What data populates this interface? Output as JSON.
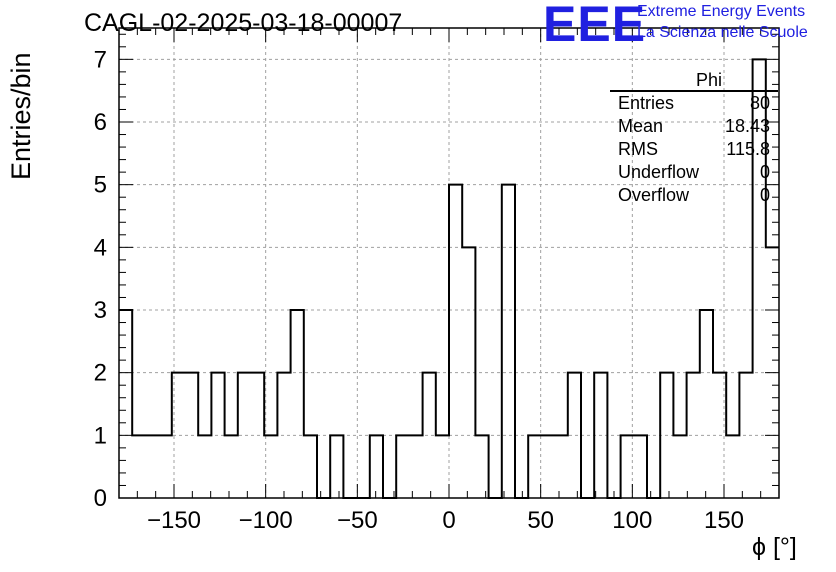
{
  "header": {
    "title": "CAGL-02-2025-03-18-00007",
    "logo_text": "EEE",
    "logo_line1": "Extreme Energy Events",
    "logo_line2": "La Scienza nelle Scuole"
  },
  "stats_box": {
    "name": "Phi",
    "rows": [
      {
        "key": "Entries",
        "value": "80"
      },
      {
        "key": "Mean",
        "value": "18.43"
      },
      {
        "key": "RMS",
        "value": "115.8"
      },
      {
        "key": "Underflow",
        "value": "0"
      },
      {
        "key": "Overflow",
        "value": "0"
      }
    ]
  },
  "chart_data": {
    "type": "histogram",
    "title": "CAGL-02-2025-03-18-00007",
    "xlabel": "ϕ [°]",
    "ylabel": "Entries/bin",
    "xlim": [
      -180,
      180
    ],
    "ylim": [
      0,
      7.5
    ],
    "bin_width": 7.2,
    "counts": [
      3,
      1,
      1,
      1,
      2,
      2,
      1,
      2,
      1,
      2,
      2,
      1,
      2,
      3,
      1,
      0,
      1,
      0,
      0,
      1,
      0,
      1,
      1,
      2,
      1,
      5,
      4,
      1,
      0,
      5,
      0,
      1,
      1,
      1,
      2,
      0,
      2,
      0,
      1,
      1,
      0,
      2,
      1,
      2,
      3,
      2,
      1,
      2,
      7,
      4
    ],
    "xticks": [
      -150,
      -100,
      -50,
      0,
      50,
      100,
      150
    ],
    "xtick_labels": [
      "−150",
      "−100",
      "−50",
      "0",
      "50",
      "100",
      "150"
    ],
    "yticks": [
      0,
      1,
      2,
      3,
      4,
      5,
      6,
      7
    ],
    "ytick_labels": [
      "0",
      "1",
      "2",
      "3",
      "4",
      "5",
      "6",
      "7"
    ],
    "grid": true,
    "line_color": "#000000",
    "grid_color": "#a0a0a0"
  }
}
